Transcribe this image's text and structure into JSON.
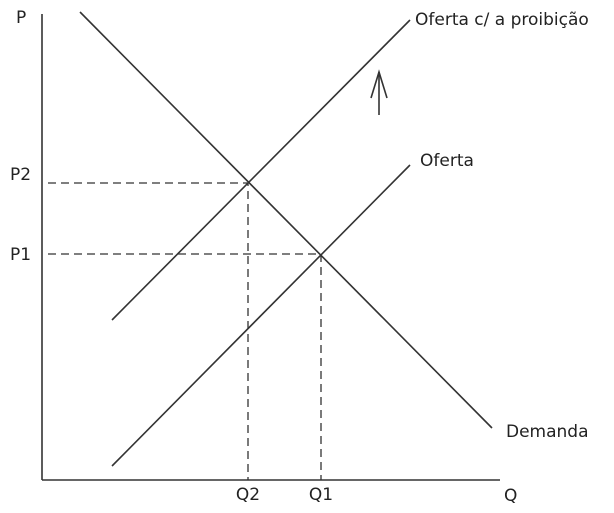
{
  "axes": {
    "y_label": "P",
    "x_label": "Q"
  },
  "price_levels": {
    "upper": "P2",
    "lower": "P1"
  },
  "quantity_levels": {
    "left": "Q2",
    "right": "Q1"
  },
  "curves": {
    "supply_with_ban": "Oferta c/ a proibição",
    "supply": "Oferta",
    "demand": "Demanda"
  }
}
